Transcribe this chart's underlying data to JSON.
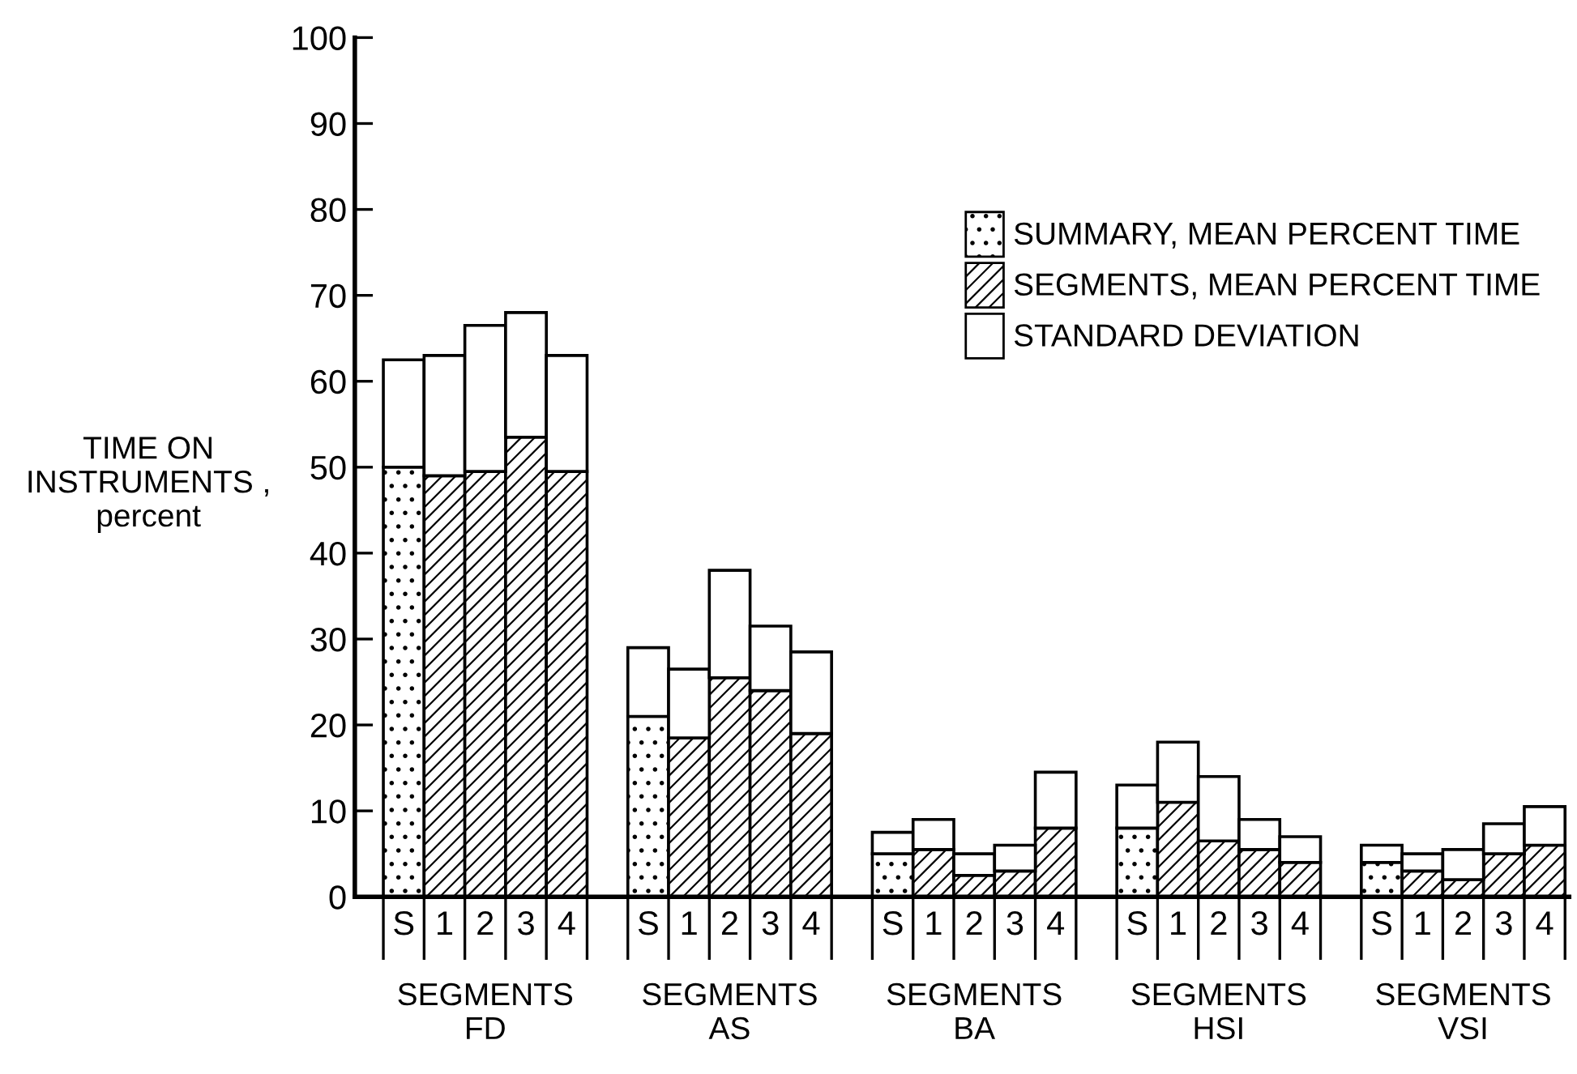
{
  "chart_data": {
    "type": "bar",
    "stacked": true,
    "ylabel": "TIME ON\nINSTRUMENTS ,\npercent",
    "categories": [
      "S",
      "1",
      "2",
      "3",
      "4",
      null,
      "S",
      "1",
      "2",
      "3",
      "4",
      null,
      "S",
      "1",
      "2",
      "3",
      "4",
      null,
      "S",
      "1",
      "2",
      "3",
      "4",
      null,
      "S",
      "1",
      "2",
      "3",
      "4"
    ],
    "series": [
      {
        "name": "SUMMARY, MEAN PERCENT TIME",
        "color": "#000000",
        "values": [
          50,
          null,
          null,
          null,
          null,
          null,
          21,
          null,
          null,
          null,
          null,
          null,
          5,
          null,
          null,
          null,
          null,
          null,
          8,
          null,
          null,
          null,
          null,
          null,
          4,
          null,
          null,
          null,
          null
        ]
      },
      {
        "name": "SEGMENTS, MEAN PERCENT TIME",
        "color": "#000000",
        "values": [
          null,
          49,
          49.5,
          53.5,
          49.5,
          null,
          null,
          18.5,
          25.5,
          24,
          19,
          null,
          null,
          5.5,
          2.5,
          3,
          8,
          null,
          null,
          11,
          6.5,
          5.5,
          4,
          null,
          null,
          3,
          2,
          5,
          6
        ]
      },
      {
        "name": "STANDARD DEVIATION",
        "color": "#ffffff",
        "values": [
          12.5,
          14,
          17,
          14.5,
          13.5,
          null,
          8,
          8,
          12.5,
          7.5,
          9.5,
          null,
          2.5,
          3.5,
          2.5,
          3,
          6.5,
          null,
          5,
          7,
          7.5,
          3.5,
          3,
          null,
          2,
          2,
          3.5,
          3.5,
          4.5
        ]
      }
    ],
    "annotations": [
      "SEGMENTS\nFD",
      "SEGMENTS\nAS",
      "SEGMENTS\nBA",
      "SEGMENTS\nHSI",
      "SEGMENTS\nVSI"
    ],
    "ylim": [
      0,
      100
    ],
    "yticks": [
      0,
      10,
      20,
      30,
      40,
      50,
      60,
      70,
      80,
      90,
      100
    ],
    "legend": "top right",
    "grid": false
  }
}
